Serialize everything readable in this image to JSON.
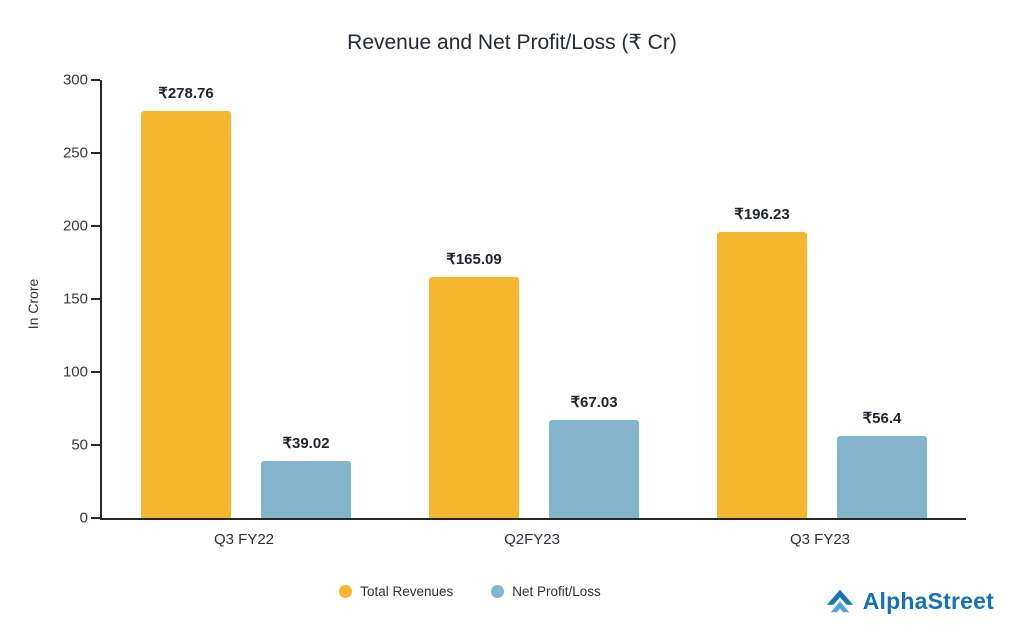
{
  "chart_data": {
    "type": "bar",
    "title": "Revenue and Net Profit/Loss (₹ Cr)",
    "xlabel": "",
    "ylabel": "In Crore",
    "ylim": [
      0,
      300
    ],
    "yticks": [
      0,
      50,
      100,
      150,
      200,
      250,
      300
    ],
    "grid": false,
    "legend_position": "bottom",
    "categories": [
      "Q3 FY22",
      "Q2FY23",
      "Q3 FY23"
    ],
    "series": [
      {
        "name": "Total Revenues",
        "color": "#F5B72F",
        "values": [
          278.76,
          165.09,
          196.23
        ],
        "labels": [
          "₹278.76",
          "₹165.09",
          "₹196.23"
        ]
      },
      {
        "name": "Net Profit/Loss",
        "color": "#85B5CC",
        "values": [
          39.02,
          67.03,
          56.4
        ],
        "labels": [
          "₹39.02",
          "₹67.03",
          "₹56.4"
        ]
      }
    ]
  },
  "branding": {
    "logo_text": "AlphaStreet",
    "logo_color": "#1572B6"
  }
}
